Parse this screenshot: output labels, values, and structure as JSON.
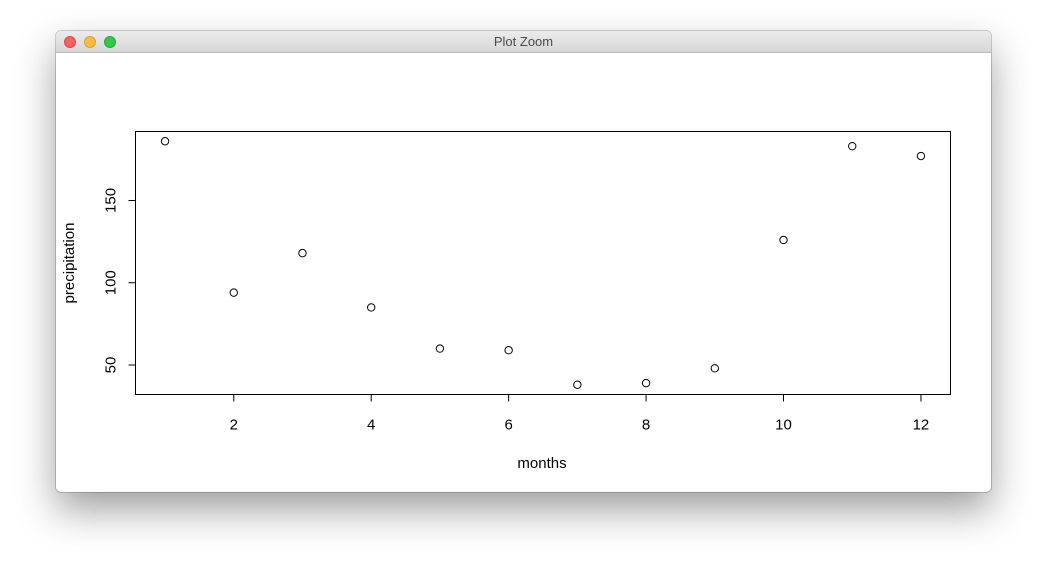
{
  "window": {
    "title": "Plot Zoom"
  },
  "chart_data": {
    "type": "scatter",
    "title": "",
    "xlabel": "months",
    "ylabel": "precipitation",
    "x": [
      1,
      2,
      3,
      4,
      5,
      6,
      7,
      8,
      9,
      10,
      11,
      12
    ],
    "y": [
      186,
      94,
      118,
      85,
      60,
      59,
      38,
      39,
      48,
      126,
      183,
      177
    ],
    "xlim": [
      0.57,
      12.43
    ],
    "ylim": [
      32.08,
      191.92
    ],
    "xticks": [
      2,
      4,
      6,
      8,
      10,
      12
    ],
    "yticks": [
      50,
      100,
      150
    ],
    "xtick_labels": [
      "2",
      "4",
      "6",
      "8",
      "10",
      "12"
    ],
    "ytick_labels": [
      "50",
      "100",
      "150"
    ],
    "grid": false,
    "marker": "open-circle",
    "colors": {
      "marker": "#000000",
      "axis": "#000000"
    }
  }
}
